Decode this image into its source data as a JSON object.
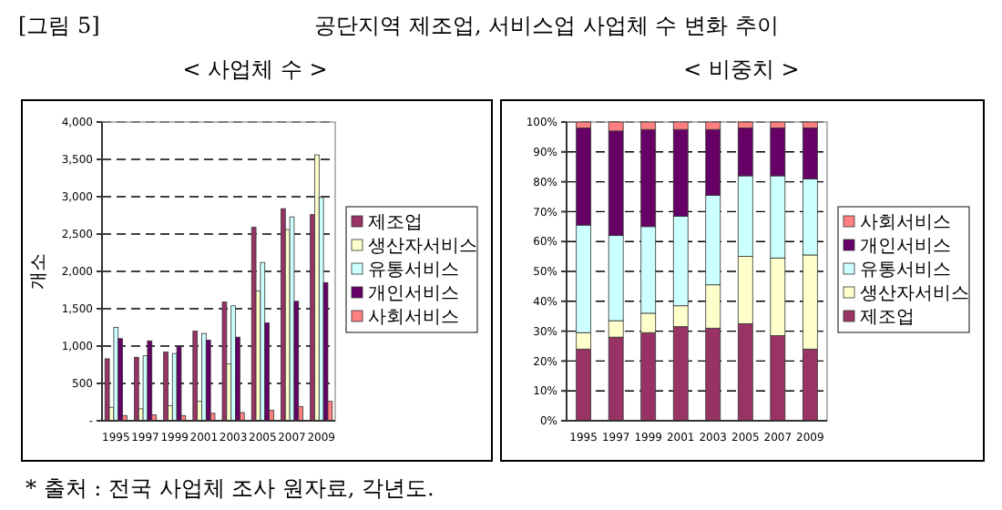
{
  "chart_data": [
    {
      "type": "bar",
      "title": "공단지역 제조업, 서비스업 사업체 수 변화 추이",
      "subtitle": "< 사업체 수 >",
      "ylabel": "개소",
      "annotations": [
        "[그림 5]",
        "* 출처 : 전국 사업체 조사 원자료, 각년도."
      ],
      "categories": [
        "1995",
        "1997",
        "1999",
        "2001",
        "2003",
        "2005",
        "2007",
        "2009"
      ],
      "series": [
        {
          "name": "제조업",
          "color": "#993366",
          "values": [
            830,
            850,
            920,
            1200,
            1590,
            2590,
            2840,
            2760
          ]
        },
        {
          "name": "생산자서비스",
          "color": "#ffffcc",
          "values": [
            180,
            160,
            200,
            260,
            760,
            1740,
            2560,
            3560
          ]
        },
        {
          "name": "유통서비스",
          "color": "#ccffff",
          "values": [
            1250,
            870,
            900,
            1170,
            1540,
            2120,
            2730,
            2990
          ]
        },
        {
          "name": "개인서비스",
          "color": "#660066",
          "values": [
            1100,
            1070,
            990,
            1080,
            1120,
            1310,
            1600,
            1850
          ]
        },
        {
          "name": "사회서비스",
          "color": "#ff8080",
          "values": [
            70,
            80,
            70,
            100,
            110,
            140,
            190,
            260
          ]
        }
      ],
      "ylim": [
        0,
        4000
      ],
      "yticks": [
        {
          "value": 0,
          "label": "-"
        },
        {
          "value": 500,
          "label": "500"
        },
        {
          "value": 1000,
          "label": "1,000"
        },
        {
          "value": 1500,
          "label": "1,500"
        },
        {
          "value": 2000,
          "label": "2,000"
        },
        {
          "value": 2500,
          "label": "2,500"
        },
        {
          "value": 3000,
          "label": "3,000"
        },
        {
          "value": 3500,
          "label": "3,500"
        },
        {
          "value": 4000,
          "label": "4,000"
        }
      ],
      "grid": "y",
      "legend": "right"
    },
    {
      "type": "bar",
      "subtitle": "< 비중치 >",
      "stacked": true,
      "categories": [
        "1995",
        "1997",
        "1999",
        "2001",
        "2003",
        "2005",
        "2007",
        "2009"
      ],
      "series": [
        {
          "name": "제조업",
          "color": "#993366",
          "values": [
            24,
            28,
            29.5,
            31.5,
            31,
            32.5,
            28.5,
            24
          ]
        },
        {
          "name": "생산자서비스",
          "color": "#ffffcc",
          "values": [
            5.5,
            5.5,
            6.5,
            7,
            14.5,
            22.5,
            26,
            31.5
          ]
        },
        {
          "name": "유통서비스",
          "color": "#ccffff",
          "values": [
            36,
            28.5,
            29,
            30,
            30,
            27,
            27.5,
            25.5
          ]
        },
        {
          "name": "개인서비스",
          "color": "#660066",
          "values": [
            32.5,
            35,
            32.5,
            29,
            22,
            16,
            16,
            17
          ]
        },
        {
          "name": "사회서비스",
          "color": "#ff8080",
          "values": [
            2,
            3,
            2.5,
            2.5,
            2.5,
            2,
            2,
            2
          ]
        }
      ],
      "ylim": [
        0,
        100
      ],
      "yticks": [
        {
          "value": 0,
          "label": "0%"
        },
        {
          "value": 10,
          "label": "10%"
        },
        {
          "value": 20,
          "label": "20%"
        },
        {
          "value": 30,
          "label": "30%"
        },
        {
          "value": 40,
          "label": "40%"
        },
        {
          "value": 50,
          "label": "50%"
        },
        {
          "value": 60,
          "label": "60%"
        },
        {
          "value": 70,
          "label": "70%"
        },
        {
          "value": 80,
          "label": "80%"
        },
        {
          "value": 90,
          "label": "90%"
        },
        {
          "value": 100,
          "label": "100%"
        }
      ],
      "grid": "y",
      "legend": "right"
    }
  ]
}
